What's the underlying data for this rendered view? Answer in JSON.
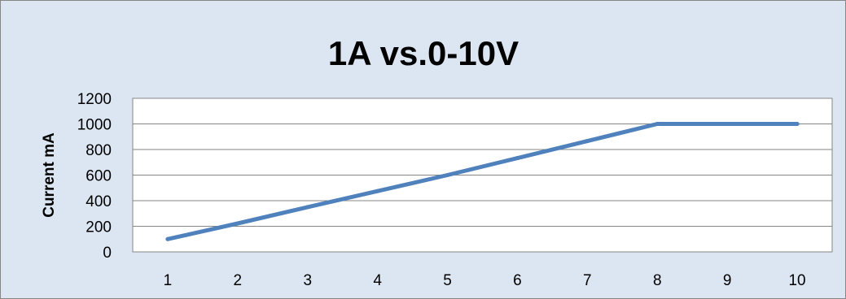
{
  "chart_data": {
    "type": "line",
    "title": "1A vs.0-10V",
    "xlabel": "",
    "ylabel": "Current mA",
    "categories": [
      "1",
      "2",
      "3",
      "4",
      "5",
      "6",
      "7",
      "8",
      "9",
      "10"
    ],
    "series": [
      {
        "values": [
          100,
          222,
          350,
          475,
          600,
          733,
          866,
          1000,
          1000,
          1000
        ]
      }
    ],
    "ylim": [
      0,
      1200
    ],
    "yticks": [
      0,
      200,
      400,
      600,
      800,
      1000,
      1200
    ],
    "grid": true,
    "legend": "none",
    "colors": {
      "background": "#dce6f2",
      "plot_area": "#ffffff",
      "line": "#4f81bd",
      "grid": "#868686",
      "border": "#868686"
    }
  }
}
